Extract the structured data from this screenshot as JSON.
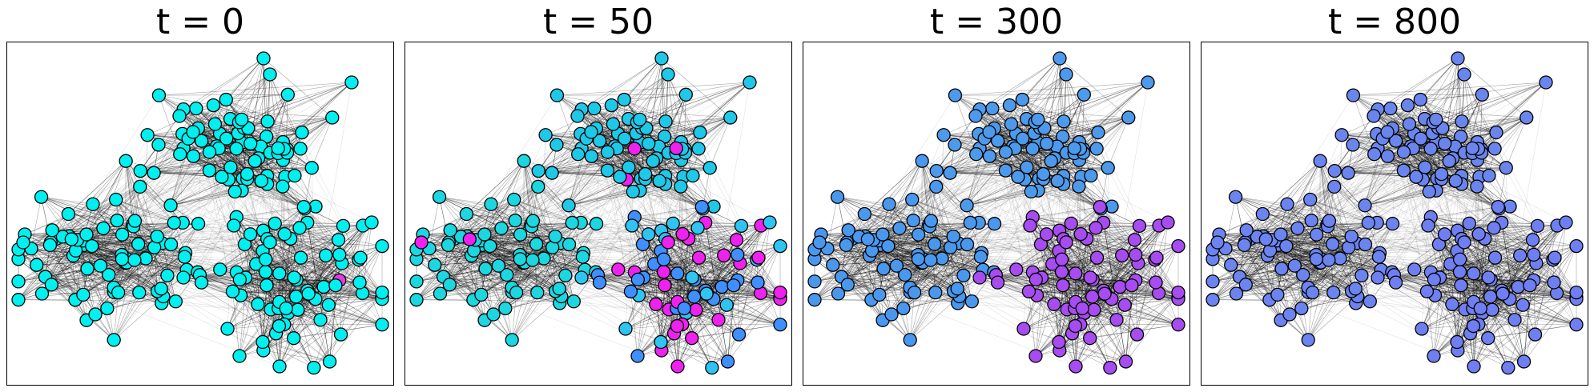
{
  "panels": [
    {
      "title": "t = 0",
      "palette": {
        "A": "#00f0f0",
        "B": "#00f0f0",
        "C": "#00f0f0"
      },
      "seeds": [
        "#e23be2"
      ],
      "mixed": false
    },
    {
      "title": "t = 50",
      "palette": {
        "A": "#1cd6e0",
        "B": "#20c8e8",
        "C": "#5a8ef0"
      },
      "seeds": [
        "#ee22ee",
        "#3f8fff",
        "#2fc4f2"
      ],
      "mixed": true
    },
    {
      "title": "t = 300",
      "palette": {
        "A": "#4a98ee",
        "B": "#4d9aec",
        "C": "#a64cf0"
      },
      "seeds": [],
      "mixed": false
    },
    {
      "title": "t = 800",
      "palette": {
        "A": "#6b84f0",
        "B": "#6a86ee",
        "C": "#6f7ff2"
      },
      "seeds": [],
      "mixed": false
    }
  ],
  "colors": {
    "edge": "#000000",
    "node_stroke": "#000000",
    "frame": "#000000"
  }
}
